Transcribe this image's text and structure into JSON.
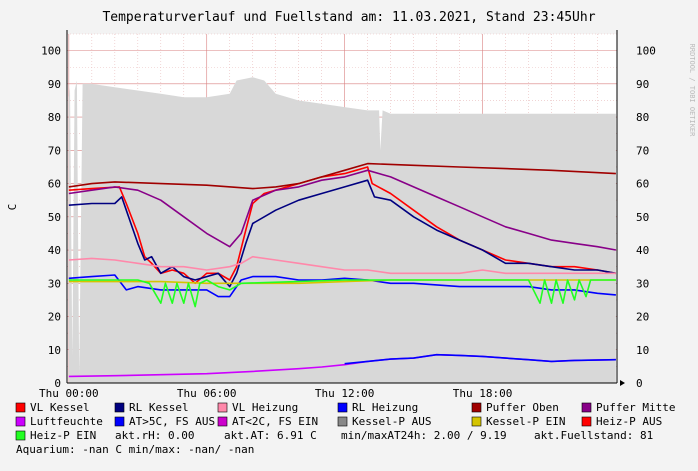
{
  "chart_data": {
    "type": "line",
    "title": "Temperaturverlauf und Fuellstand am: 11.03.2021, Stand 23:45Uhr",
    "ylabel": "C",
    "watermark": "RRDTOOL / TOBI OETIKER",
    "ylim": [
      0,
      105
    ],
    "xlim": [
      -0.08,
      23.85
    ],
    "y_ticks": [
      "0",
      "10",
      "20",
      "30",
      "40",
      "50",
      "60",
      "70",
      "80",
      "90",
      "100"
    ],
    "x_ticks": [
      {
        "label": "Thu 00:00",
        "t": 0
      },
      {
        "label": "Thu 06:00",
        "t": 6
      },
      {
        "label": "Thu 12:00",
        "t": 12
      },
      {
        "label": "Thu 18:00",
        "t": 18
      }
    ],
    "colors": {
      "grid_minor": "#e8bcbc",
      "grid_major": "#d88080",
      "fill": "#d8d8d8",
      "vl_kessel": "#ff0000",
      "rl_kessel": "#000080",
      "vl_heizung": "#ff88aa",
      "rl_heizung": "#0000ff",
      "puffer_oben": "#a00000",
      "puffer_mitte": "#880088",
      "luftfeuchte": "#cc00ff",
      "at_warm": "#0000ff",
      "at_cold": "#cc00cc",
      "kessel_p_aus": "#888888",
      "kessel_p_ein": "#d4c400",
      "heiz_p_aus": "#ff0000",
      "heiz_p_ein": "#22ff22"
    },
    "series": [
      {
        "key": "fuellstand",
        "name": "akt.Fuellstand",
        "color": "#d8d8d8",
        "type": "area",
        "points": [
          [
            0,
            86
          ],
          [
            0.05,
            89
          ],
          [
            0.15,
            8
          ],
          [
            0.25,
            88
          ],
          [
            0.35,
            91
          ],
          [
            0.45,
            3
          ],
          [
            0.6,
            90
          ],
          [
            1,
            90
          ],
          [
            2,
            89
          ],
          [
            3,
            88
          ],
          [
            4,
            87
          ],
          [
            5,
            86
          ],
          [
            6,
            86
          ],
          [
            7,
            87
          ],
          [
            7.3,
            91
          ],
          [
            8,
            92
          ],
          [
            8.5,
            91
          ],
          [
            9,
            87
          ],
          [
            10,
            85
          ],
          [
            11,
            84
          ],
          [
            12,
            83
          ],
          [
            13,
            82
          ],
          [
            13.5,
            82
          ],
          [
            13.55,
            70
          ],
          [
            13.65,
            82
          ],
          [
            14,
            81
          ],
          [
            16,
            81
          ],
          [
            18,
            81
          ],
          [
            20,
            81
          ],
          [
            23.8,
            81
          ]
        ]
      },
      {
        "key": "vl_kessel",
        "name": "VL Kessel",
        "color": "#ff0000",
        "points": [
          [
            0,
            58
          ],
          [
            1,
            58.5
          ],
          [
            2.2,
            59
          ],
          [
            2.5,
            54
          ],
          [
            3,
            45
          ],
          [
            3.3,
            38
          ],
          [
            3.6,
            36
          ],
          [
            4,
            33
          ],
          [
            4.5,
            34
          ],
          [
            5,
            33
          ],
          [
            5.5,
            30
          ],
          [
            6,
            33
          ],
          [
            6.5,
            33
          ],
          [
            7,
            31
          ],
          [
            7.3,
            35
          ],
          [
            7.7,
            46
          ],
          [
            8,
            54
          ],
          [
            8.5,
            57
          ],
          [
            9,
            58
          ],
          [
            10,
            60
          ],
          [
            11,
            62
          ],
          [
            12,
            63
          ],
          [
            12.5,
            64
          ],
          [
            13,
            65
          ],
          [
            13.2,
            60
          ],
          [
            14,
            57
          ],
          [
            15,
            52
          ],
          [
            16,
            47
          ],
          [
            17,
            43
          ],
          [
            18,
            40
          ],
          [
            19,
            37
          ],
          [
            20,
            36
          ],
          [
            21,
            35
          ],
          [
            22,
            35
          ],
          [
            23,
            34
          ],
          [
            23.8,
            33
          ]
        ]
      },
      {
        "key": "rl_kessel",
        "name": "RL Kessel",
        "color": "#000080",
        "points": [
          [
            0,
            53.5
          ],
          [
            1,
            54
          ],
          [
            2,
            54
          ],
          [
            2.3,
            56
          ],
          [
            2.7,
            48
          ],
          [
            3,
            42
          ],
          [
            3.3,
            37
          ],
          [
            3.6,
            38
          ],
          [
            4,
            33
          ],
          [
            4.5,
            35
          ],
          [
            5,
            32
          ],
          [
            5.5,
            31
          ],
          [
            6,
            32
          ],
          [
            6.5,
            33
          ],
          [
            7,
            29
          ],
          [
            7.3,
            33
          ],
          [
            7.7,
            42
          ],
          [
            8,
            48
          ],
          [
            9,
            52
          ],
          [
            10,
            55
          ],
          [
            11,
            57
          ],
          [
            12,
            59
          ],
          [
            13,
            61
          ],
          [
            13.3,
            56
          ],
          [
            14,
            55
          ],
          [
            15,
            50
          ],
          [
            16,
            46
          ],
          [
            17,
            43
          ],
          [
            18,
            40
          ],
          [
            19,
            36
          ],
          [
            20,
            36
          ],
          [
            21,
            35
          ],
          [
            22,
            34
          ],
          [
            23,
            34
          ],
          [
            23.8,
            33
          ]
        ]
      },
      {
        "key": "vl_heizung",
        "name": "VL Heizung",
        "color": "#ff88aa",
        "points": [
          [
            0,
            37
          ],
          [
            1,
            37.5
          ],
          [
            2,
            37
          ],
          [
            3,
            36
          ],
          [
            4,
            35
          ],
          [
            5,
            35
          ],
          [
            6,
            34
          ],
          [
            7,
            35
          ],
          [
            7.5,
            36
          ],
          [
            8,
            38
          ],
          [
            9,
            37
          ],
          [
            10,
            36
          ],
          [
            11,
            35
          ],
          [
            12,
            34
          ],
          [
            13,
            34
          ],
          [
            14,
            33
          ],
          [
            15,
            33
          ],
          [
            16,
            33
          ],
          [
            17,
            33
          ],
          [
            18,
            34
          ],
          [
            19,
            33
          ],
          [
            20,
            33
          ],
          [
            21,
            33
          ],
          [
            22,
            33
          ],
          [
            23,
            33
          ],
          [
            23.8,
            33
          ]
        ]
      },
      {
        "key": "rl_heizung",
        "name": "RL Heizung",
        "color": "#0000ff",
        "points": [
          [
            0,
            31.5
          ],
          [
            1,
            32
          ],
          [
            2,
            32.5
          ],
          [
            2.5,
            28
          ],
          [
            3,
            29
          ],
          [
            4,
            28
          ],
          [
            5,
            28
          ],
          [
            6,
            28
          ],
          [
            6.5,
            26
          ],
          [
            7,
            26
          ],
          [
            7.5,
            31
          ],
          [
            8,
            32
          ],
          [
            9,
            32
          ],
          [
            10,
            31
          ],
          [
            11,
            31
          ],
          [
            12,
            31.5
          ],
          [
            13,
            31
          ],
          [
            14,
            30
          ],
          [
            15,
            30
          ],
          [
            16,
            29.5
          ],
          [
            17,
            29
          ],
          [
            18,
            29
          ],
          [
            19,
            29
          ],
          [
            20,
            29
          ],
          [
            21,
            28
          ],
          [
            22,
            28
          ],
          [
            23,
            27
          ],
          [
            23.8,
            26.5
          ]
        ]
      },
      {
        "key": "puffer_oben",
        "name": "Puffer Oben",
        "color": "#a00000",
        "points": [
          [
            0,
            59
          ],
          [
            1,
            60
          ],
          [
            2,
            60.5
          ],
          [
            4,
            60
          ],
          [
            6,
            59.5
          ],
          [
            8,
            58.5
          ],
          [
            9,
            59
          ],
          [
            10,
            60
          ],
          [
            11,
            62
          ],
          [
            12,
            64
          ],
          [
            13,
            66
          ],
          [
            15,
            65.5
          ],
          [
            17,
            65
          ],
          [
            19,
            64.5
          ],
          [
            21,
            64
          ],
          [
            23.8,
            63
          ]
        ]
      },
      {
        "key": "puffer_mitte",
        "name": "Puffer Mitte",
        "color": "#880088",
        "points": [
          [
            0,
            57
          ],
          [
            1,
            58
          ],
          [
            2,
            59
          ],
          [
            3,
            58
          ],
          [
            4,
            55
          ],
          [
            5,
            50
          ],
          [
            6,
            45
          ],
          [
            7,
            41
          ],
          [
            7.5,
            45
          ],
          [
            8,
            55
          ],
          [
            9,
            58
          ],
          [
            10,
            59
          ],
          [
            11,
            61
          ],
          [
            12,
            62
          ],
          [
            13,
            64
          ],
          [
            14,
            62
          ],
          [
            15,
            59
          ],
          [
            16,
            56
          ],
          [
            17,
            53
          ],
          [
            18,
            50
          ],
          [
            19,
            47
          ],
          [
            20,
            45
          ],
          [
            21,
            43
          ],
          [
            22,
            42
          ],
          [
            23,
            41
          ],
          [
            23.8,
            40
          ]
        ]
      },
      {
        "key": "luftfeuchte",
        "name": "Luftfeuchte",
        "color": "#cc00ff",
        "points": [
          [
            0,
            2
          ],
          [
            2,
            2.2
          ],
          [
            4,
            2.5
          ],
          [
            6,
            2.8
          ],
          [
            8,
            3.5
          ],
          [
            10,
            4.3
          ],
          [
            11,
            4.8
          ],
          [
            12,
            5.5
          ],
          [
            13,
            6.5
          ],
          [
            14,
            7.2
          ],
          [
            15,
            7.5
          ],
          [
            16,
            8.5
          ],
          [
            17,
            8.3
          ],
          [
            18,
            8
          ],
          [
            19,
            7.5
          ],
          [
            20,
            7
          ],
          [
            21,
            6.5
          ],
          [
            22,
            6.8
          ],
          [
            23.8,
            7
          ]
        ]
      },
      {
        "key": "at_warm",
        "name": "AT>5C, FS AUS",
        "color": "#0000ff",
        "points": [
          [
            12,
            5.8
          ],
          [
            13,
            6.5
          ],
          [
            14,
            7.2
          ],
          [
            15,
            7.5
          ],
          [
            16,
            8.5
          ],
          [
            17,
            8.3
          ],
          [
            18,
            8
          ],
          [
            19,
            7.5
          ],
          [
            20,
            7
          ],
          [
            21,
            6.5
          ],
          [
            22,
            6.8
          ],
          [
            23.8,
            7
          ]
        ]
      },
      {
        "key": "kessel_p_ein",
        "name": "Kessel-P EIN",
        "color": "#d4c400",
        "points": [
          [
            0,
            30.5
          ],
          [
            4,
            30.5
          ],
          [
            6,
            30
          ],
          [
            7.5,
            30
          ],
          [
            10,
            30
          ],
          [
            12,
            30.5
          ],
          [
            14,
            31
          ],
          [
            16,
            31
          ],
          [
            18,
            31
          ],
          [
            20,
            31
          ],
          [
            23.8,
            31
          ]
        ]
      },
      {
        "key": "heiz_p_ein",
        "name": "Heiz-P EIN",
        "color": "#22ff22",
        "points": [
          [
            0,
            31
          ],
          [
            3,
            31
          ],
          [
            3.5,
            30
          ],
          [
            4,
            24
          ],
          [
            4.2,
            30
          ],
          [
            4.5,
            24
          ],
          [
            4.7,
            30
          ],
          [
            5,
            24
          ],
          [
            5.2,
            30
          ],
          [
            5.5,
            23
          ],
          [
            5.7,
            30
          ],
          [
            6,
            31
          ],
          [
            6.5,
            29
          ],
          [
            7,
            28
          ],
          [
            7.5,
            30
          ],
          [
            12,
            31
          ],
          [
            14,
            31
          ],
          [
            18,
            31
          ],
          [
            20,
            31
          ],
          [
            20.5,
            24
          ],
          [
            20.7,
            31
          ],
          [
            21,
            24
          ],
          [
            21.2,
            31
          ],
          [
            21.5,
            24
          ],
          [
            21.7,
            31
          ],
          [
            22,
            25
          ],
          [
            22.2,
            31
          ],
          [
            22.5,
            26
          ],
          [
            22.7,
            31
          ],
          [
            23.8,
            31
          ]
        ]
      }
    ],
    "legend": [
      {
        "label": "VL Kessel",
        "color": "#ff0000"
      },
      {
        "label": "RL Kessel",
        "color": "#000080"
      },
      {
        "label": "VL Heizung",
        "color": "#ff88aa"
      },
      {
        "label": "RL Heizung",
        "color": "#0000ff"
      },
      {
        "label": "Puffer Oben",
        "color": "#a00000"
      },
      {
        "label": "Puffer Mitte",
        "color": "#880088"
      },
      {
        "label": "Luftfeuchte",
        "color": "#cc00ff"
      },
      {
        "label": "AT>5C, FS AUS",
        "color": "#0000ff"
      },
      {
        "label": "AT<2C, FS EIN",
        "color": "#cc00cc"
      },
      {
        "label": "Kessel-P AUS",
        "color": "#888888"
      },
      {
        "label": "Kessel-P EIN",
        "color": "#d4c400"
      },
      {
        "label": "Heiz-P AUS",
        "color": "#ff0000"
      },
      {
        "label": "Heiz-P EIN",
        "color": "#22ff22"
      }
    ],
    "status_texts": [
      "akt.rH: 0.00",
      "akt.AT: 6.91 C",
      "min/maxAT24h: 2.00 / 9.19",
      "akt.Fuellstand:   81",
      "Aquarium: -nan C  min/max: -nan/ -nan"
    ]
  }
}
